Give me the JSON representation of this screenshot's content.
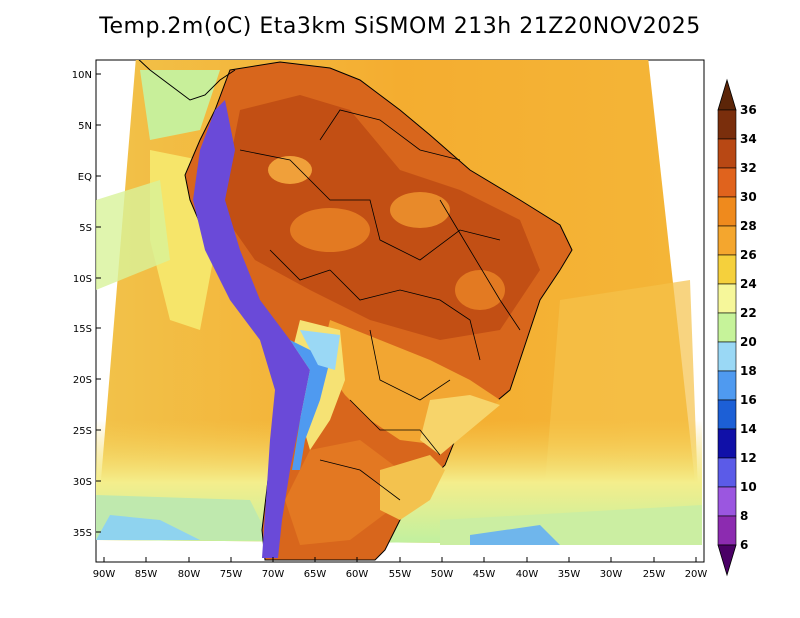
{
  "title": "Temp.2m(oC) Eta3km SiSMOM 213h 21Z20NOV2025",
  "axes": {
    "lat_labels": [
      "10N",
      "5N",
      "EQ",
      "5S",
      "10S",
      "15S",
      "20S",
      "25S",
      "30S",
      "35S"
    ],
    "lon_labels": [
      "90W",
      "85W",
      "80W",
      "75W",
      "70W",
      "65W",
      "60W",
      "55W",
      "50W",
      "45W",
      "40W",
      "35W",
      "30W",
      "25W",
      "20W"
    ]
  },
  "colorbar": {
    "labels": [
      "6",
      "8",
      "10",
      "12",
      "14",
      "16",
      "18",
      "20",
      "22",
      "24",
      "26",
      "28",
      "30",
      "32",
      "34",
      "36"
    ],
    "colors": [
      "#5a0a78",
      "#8c2bb0",
      "#9b56e0",
      "#5b5be8",
      "#1010a8",
      "#1c5fd6",
      "#4f9af0",
      "#9ad8f5",
      "#c6f39a",
      "#f6f79a",
      "#f5d03c",
      "#f4a62e",
      "#ef8a1d",
      "#e0631d",
      "#b84814",
      "#7a2e0c"
    ],
    "min_arrow_color": "#4a0066",
    "max_arrow_color": "#5c2508"
  },
  "colors": {
    "ocean_warm": "#f4b036",
    "ocean_mid": "#f7d95a",
    "ocean_cool": "#d8f39a",
    "land_hot": "#d55f18",
    "andes_cold": "#5a40c8"
  }
}
